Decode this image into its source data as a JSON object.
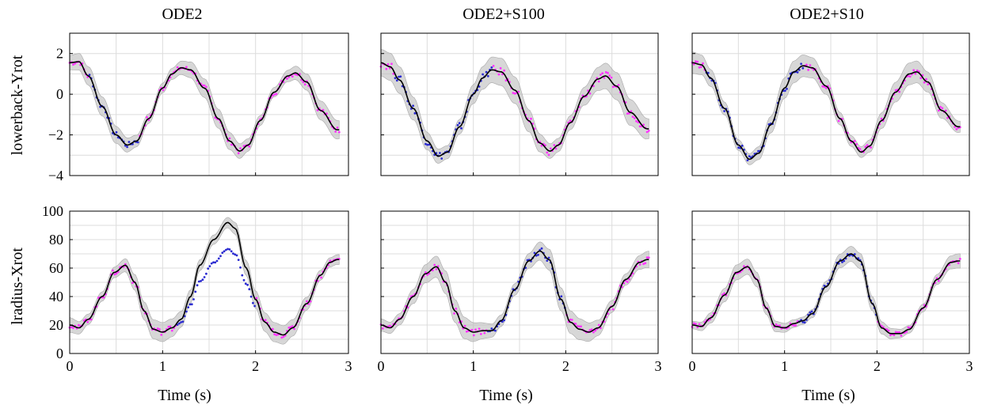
{
  "colors": {
    "observed": "#ff33ff",
    "missing": "#2a2ad0",
    "mean": "#000000",
    "band": "#bdbdbd"
  },
  "chart_data": {
    "type": "line",
    "columns": [
      "ODE2",
      "ODE2+S100",
      "ODE2+S10"
    ],
    "rows": [
      "lowerback-Yrot",
      "lradius-Xrot"
    ],
    "xlabel": "Time (s)",
    "xlim": [
      0,
      3
    ],
    "xticks": [
      "0",
      "1",
      "2",
      "3"
    ],
    "grid": true,
    "panels": [
      {
        "row": 0,
        "col": 0,
        "ylim": [
          -4,
          3
        ],
        "yticks": [
          "2",
          "0",
          "−2",
          "−4"
        ],
        "mean": [
          [
            0,
            1.55
          ],
          [
            0.1,
            1.6
          ],
          [
            0.2,
            0.9
          ],
          [
            0.35,
            -0.6
          ],
          [
            0.5,
            -2.0
          ],
          [
            0.62,
            -2.5
          ],
          [
            0.72,
            -2.3
          ],
          [
            0.85,
            -1.2
          ],
          [
            1.0,
            0.3
          ],
          [
            1.1,
            1.0
          ],
          [
            1.2,
            1.3
          ],
          [
            1.3,
            1.2
          ],
          [
            1.45,
            0.3
          ],
          [
            1.6,
            -1.2
          ],
          [
            1.72,
            -2.3
          ],
          [
            1.83,
            -2.8
          ],
          [
            1.92,
            -2.5
          ],
          [
            2.05,
            -1.3
          ],
          [
            2.2,
            0.1
          ],
          [
            2.35,
            0.9
          ],
          [
            2.43,
            1.05
          ],
          [
            2.55,
            0.6
          ],
          [
            2.7,
            -0.8
          ],
          [
            2.88,
            -1.75
          ]
        ],
        "band_halfwidth": 0.35
      },
      {
        "row": 0,
        "col": 1,
        "ylim": [
          -4,
          3
        ],
        "yticks": [],
        "mean": [
          [
            0,
            1.55
          ],
          [
            0.1,
            1.35
          ],
          [
            0.2,
            0.7
          ],
          [
            0.35,
            -0.7
          ],
          [
            0.5,
            -2.3
          ],
          [
            0.62,
            -3.05
          ],
          [
            0.72,
            -2.85
          ],
          [
            0.85,
            -1.6
          ],
          [
            1.0,
            0.0
          ],
          [
            1.1,
            0.8
          ],
          [
            1.2,
            1.2
          ],
          [
            1.3,
            1.1
          ],
          [
            1.45,
            0.2
          ],
          [
            1.6,
            -1.3
          ],
          [
            1.72,
            -2.4
          ],
          [
            1.83,
            -2.8
          ],
          [
            1.92,
            -2.5
          ],
          [
            2.05,
            -1.4
          ],
          [
            2.2,
            -0.1
          ],
          [
            2.35,
            0.75
          ],
          [
            2.43,
            0.9
          ],
          [
            2.55,
            0.4
          ],
          [
            2.7,
            -0.9
          ],
          [
            2.88,
            -1.7
          ]
        ],
        "band_halfwidth": 0.5
      },
      {
        "row": 0,
        "col": 2,
        "ylim": [
          -4,
          3
        ],
        "yticks": [],
        "mean": [
          [
            0,
            1.55
          ],
          [
            0.1,
            1.45
          ],
          [
            0.2,
            0.8
          ],
          [
            0.35,
            -0.7
          ],
          [
            0.5,
            -2.5
          ],
          [
            0.62,
            -3.2
          ],
          [
            0.72,
            -2.9
          ],
          [
            0.85,
            -1.5
          ],
          [
            1.0,
            0.3
          ],
          [
            1.1,
            1.1
          ],
          [
            1.2,
            1.4
          ],
          [
            1.3,
            1.3
          ],
          [
            1.45,
            0.4
          ],
          [
            1.6,
            -1.2
          ],
          [
            1.72,
            -2.3
          ],
          [
            1.83,
            -2.85
          ],
          [
            1.92,
            -2.55
          ],
          [
            2.05,
            -1.3
          ],
          [
            2.2,
            0.1
          ],
          [
            2.35,
            1.0
          ],
          [
            2.43,
            1.1
          ],
          [
            2.55,
            0.6
          ],
          [
            2.7,
            -0.8
          ],
          [
            2.88,
            -1.6
          ]
        ],
        "band_halfwidth": 0.4
      },
      {
        "row": 1,
        "col": 0,
        "ylim": [
          0,
          100
        ],
        "yticks": [
          "100",
          "80",
          "60",
          "40",
          "20",
          "0"
        ],
        "mean": [
          [
            0,
            20
          ],
          [
            0.1,
            18
          ],
          [
            0.2,
            24
          ],
          [
            0.35,
            40
          ],
          [
            0.48,
            57
          ],
          [
            0.6,
            62
          ],
          [
            0.7,
            50
          ],
          [
            0.8,
            30
          ],
          [
            0.9,
            17
          ],
          [
            1.0,
            15
          ],
          [
            1.1,
            18
          ],
          [
            1.2,
            24
          ],
          [
            1.3,
            40
          ],
          [
            1.4,
            62
          ],
          [
            1.55,
            80
          ],
          [
            1.7,
            92
          ],
          [
            1.78,
            88
          ],
          [
            1.9,
            60
          ],
          [
            2.0,
            38
          ],
          [
            2.1,
            22
          ],
          [
            2.2,
            15
          ],
          [
            2.3,
            13
          ],
          [
            2.4,
            18
          ],
          [
            2.55,
            35
          ],
          [
            2.7,
            55
          ],
          [
            2.8,
            64
          ],
          [
            2.88,
            66
          ]
        ],
        "band_halfwidth": 5
      },
      {
        "row": 1,
        "col": 1,
        "ylim": [
          0,
          100
        ],
        "yticks": [],
        "mean": [
          [
            0,
            20
          ],
          [
            0.1,
            18
          ],
          [
            0.2,
            24
          ],
          [
            0.35,
            40
          ],
          [
            0.48,
            56
          ],
          [
            0.6,
            61
          ],
          [
            0.7,
            50
          ],
          [
            0.8,
            30
          ],
          [
            0.9,
            18
          ],
          [
            1.0,
            15
          ],
          [
            1.1,
            16
          ],
          [
            1.2,
            16
          ],
          [
            1.3,
            23
          ],
          [
            1.45,
            45
          ],
          [
            1.6,
            65
          ],
          [
            1.72,
            72
          ],
          [
            1.82,
            66
          ],
          [
            1.95,
            38
          ],
          [
            2.05,
            22
          ],
          [
            2.15,
            17
          ],
          [
            2.25,
            15
          ],
          [
            2.35,
            18
          ],
          [
            2.5,
            33
          ],
          [
            2.65,
            52
          ],
          [
            2.8,
            64
          ],
          [
            2.88,
            66
          ]
        ],
        "band_halfwidth": 6
      },
      {
        "row": 1,
        "col": 2,
        "ylim": [
          0,
          100
        ],
        "yticks": [],
        "mean": [
          [
            0,
            20
          ],
          [
            0.1,
            19
          ],
          [
            0.2,
            25
          ],
          [
            0.35,
            41
          ],
          [
            0.48,
            57
          ],
          [
            0.6,
            61
          ],
          [
            0.7,
            52
          ],
          [
            0.8,
            32
          ],
          [
            0.9,
            19
          ],
          [
            1.0,
            18
          ],
          [
            1.1,
            21
          ],
          [
            1.2,
            23
          ],
          [
            1.3,
            28
          ],
          [
            1.45,
            47
          ],
          [
            1.6,
            65
          ],
          [
            1.72,
            70
          ],
          [
            1.82,
            65
          ],
          [
            1.95,
            35
          ],
          [
            2.05,
            18
          ],
          [
            2.15,
            14
          ],
          [
            2.25,
            14
          ],
          [
            2.35,
            17
          ],
          [
            2.5,
            32
          ],
          [
            2.65,
            52
          ],
          [
            2.8,
            64
          ],
          [
            2.88,
            65
          ]
        ],
        "band_halfwidth": 4
      }
    ]
  }
}
